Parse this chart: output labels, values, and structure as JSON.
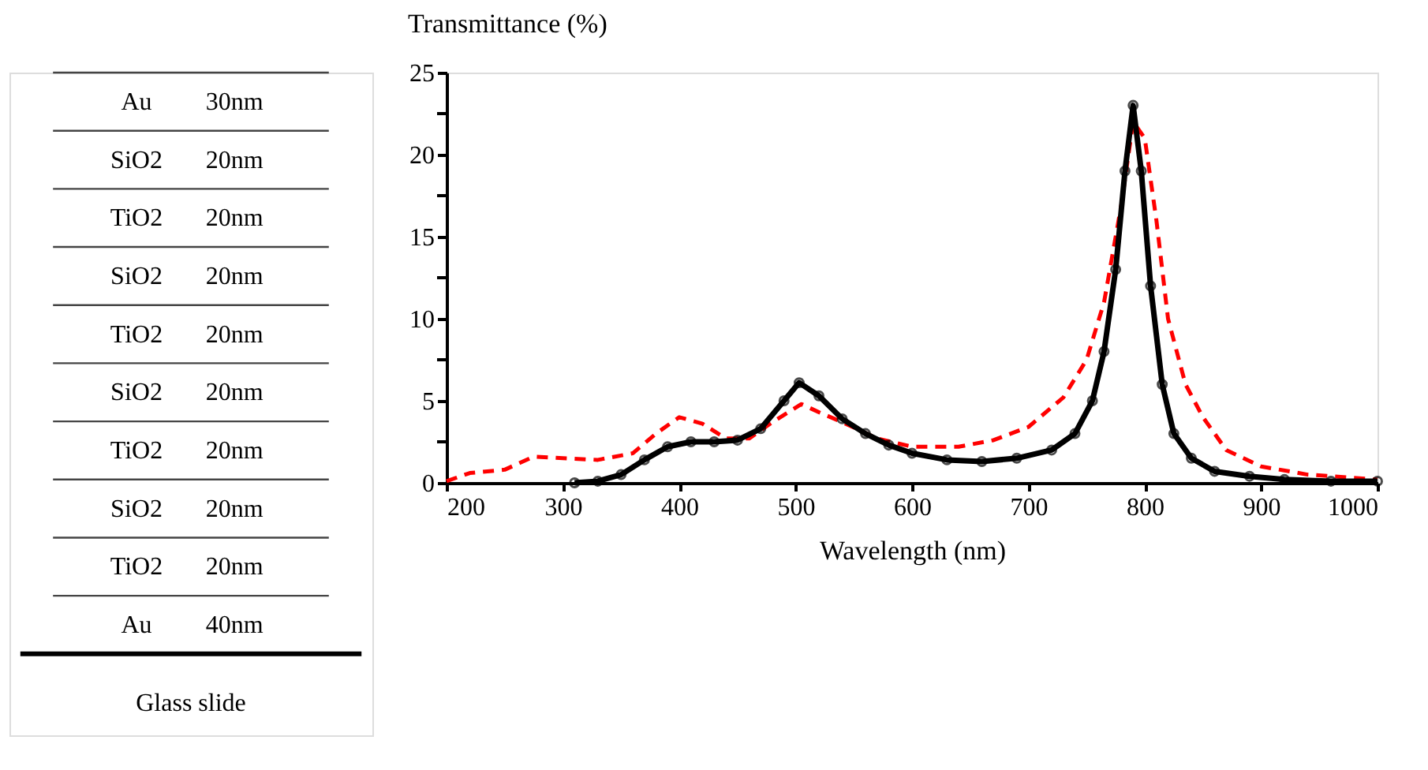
{
  "chart_data": {
    "type": "line",
    "xlabel": "Wavelength (nm)",
    "ylabel": "Transmittance (%)",
    "xlim": [
      200,
      1000
    ],
    "ylim": [
      0,
      25
    ],
    "xticks": [
      200,
      300,
      400,
      500,
      600,
      700,
      800,
      900,
      {
        "value": 1000,
        "label": "1000"
      }
    ],
    "yticks": [
      0,
      {
        "value": 2.5,
        "label": null
      },
      5,
      {
        "value": 7.5,
        "label": null
      },
      10,
      {
        "value": 12.5,
        "label": null
      },
      15,
      {
        "value": 17.5,
        "label": null
      },
      20,
      {
        "value": 22.5,
        "label": null
      },
      25
    ],
    "grid": false,
    "annotations": [
      "Au",
      "30nm",
      "SiO2",
      "20nm",
      "TiO2",
      "20nm",
      "SiO2",
      "20nm",
      "TiO2",
      "20nm",
      "SiO2",
      "20nm",
      "TiO2",
      "20nm",
      "SiO2",
      "20nm",
      "TiO2",
      "20nm",
      "Au",
      "40nm",
      "Glass slide"
    ],
    "series": [
      {
        "color": "#ff0000",
        "line_style": "dashed",
        "marker": "none",
        "x": [
          200,
          220,
          250,
          275,
          300,
          330,
          360,
          380,
          400,
          420,
          440,
          460,
          480,
          505,
          520,
          540,
          570,
          600,
          640,
          670,
          700,
          730,
          750,
          765,
          780,
          790,
          800,
          810,
          820,
          835,
          850,
          870,
          900,
          940,
          1000
        ],
        "values": [
          0.1,
          0.6,
          0.8,
          1.6,
          1.5,
          1.4,
          1.8,
          3.0,
          4.0,
          3.6,
          2.7,
          2.7,
          3.7,
          4.8,
          4.3,
          3.7,
          2.7,
          2.2,
          2.2,
          2.6,
          3.4,
          5.2,
          7.5,
          11,
          17,
          22,
          21,
          16,
          10,
          6,
          4.0,
          2.0,
          1.0,
          0.5,
          0.2
        ]
      },
      {
        "color": "#000000",
        "line_style": "solid",
        "marker": "circle",
        "x": [
          310,
          330,
          350,
          370,
          390,
          410,
          430,
          450,
          470,
          490,
          503,
          520,
          540,
          560,
          580,
          600,
          630,
          660,
          690,
          720,
          740,
          755,
          765,
          775,
          783,
          790,
          797,
          805,
          815,
          825,
          840,
          860,
          890,
          920,
          960,
          1000
        ],
        "values": [
          0,
          0.1,
          0.5,
          1.4,
          2.2,
          2.5,
          2.5,
          2.6,
          3.3,
          5.0,
          6.1,
          5.3,
          3.9,
          3.0,
          2.3,
          1.8,
          1.4,
          1.3,
          1.5,
          2.0,
          3.0,
          5.0,
          8,
          13,
          19,
          23,
          19,
          12,
          6,
          3,
          1.5,
          0.7,
          0.4,
          0.2,
          0.1,
          0.1
        ]
      }
    ]
  }
}
